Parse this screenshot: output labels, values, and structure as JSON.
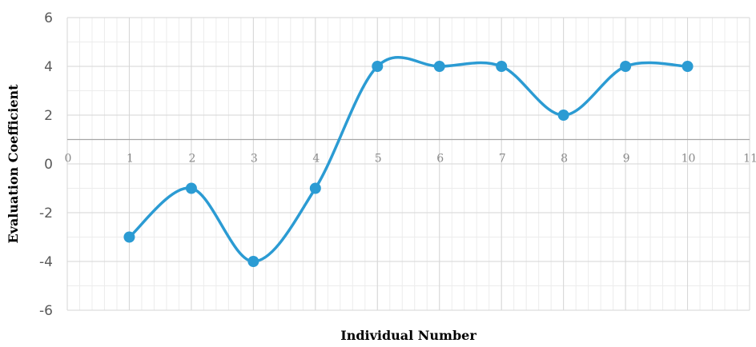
{
  "chart_data": {
    "type": "line",
    "title": "",
    "xlabel": "Individual Number",
    "ylabel": "Evaluation Coefficient",
    "xlim": [
      0,
      11
    ],
    "ylim": [
      -6,
      6
    ],
    "x_ticks": [
      "0",
      "1",
      "2",
      "3",
      "4",
      "5",
      "6",
      "7",
      "8",
      "9",
      "10",
      "11"
    ],
    "y_ticks": [
      "6",
      "4",
      "2",
      "0",
      "-2",
      "-4",
      "-6"
    ],
    "grid": true,
    "smooth": true,
    "series": [
      {
        "x": [
          1,
          2,
          3,
          4,
          5,
          6,
          7,
          8,
          9,
          10
        ],
        "values": [
          -3,
          -1,
          -4,
          -1,
          4,
          4,
          4,
          2,
          4,
          4
        ],
        "color": "#2b9bd3"
      }
    ]
  }
}
